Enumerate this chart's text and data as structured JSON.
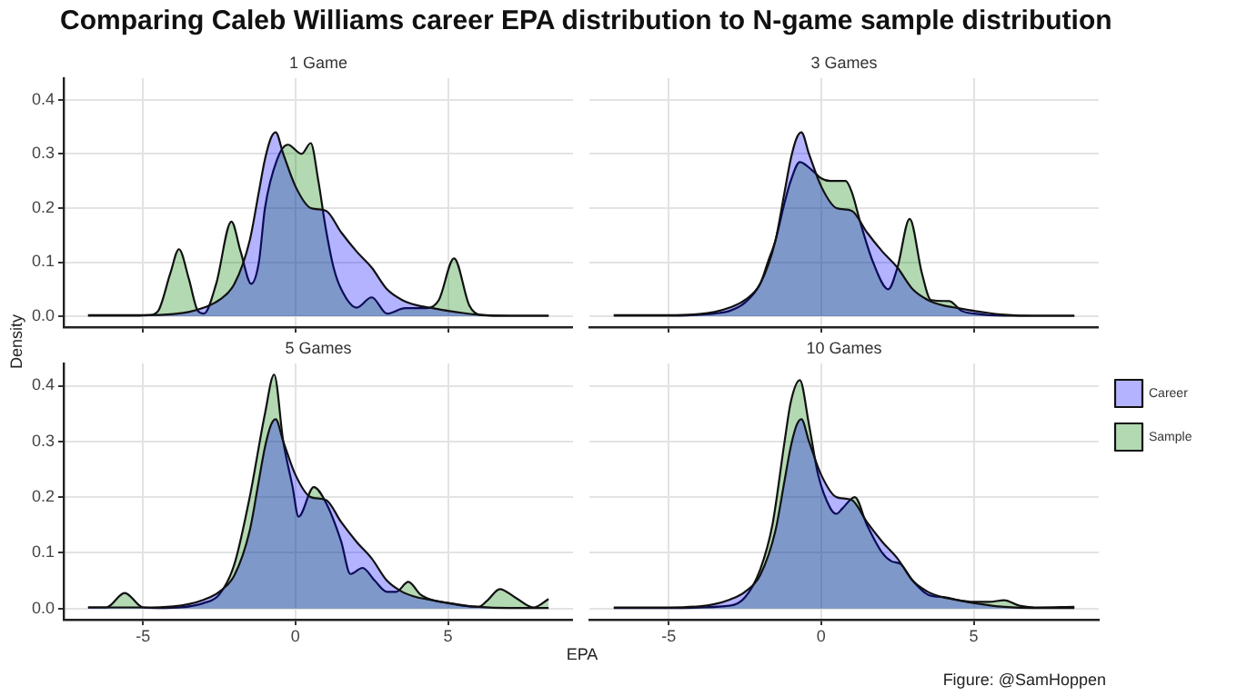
{
  "chart_data": [
    {
      "type": "area",
      "title": "Comparing Caleb Williams career EPA distribution to N-game sample distribution",
      "subtitle": "1 Game",
      "ylabel": "Density",
      "xlim": [
        -7.6,
        9.1
      ],
      "ylim": [
        -0.02,
        0.44
      ],
      "xticks": [
        -5,
        0,
        5
      ],
      "yticks": [
        {
          "value": 0,
          "label": "0.0"
        },
        {
          "value": 0.1,
          "label": "0.1"
        },
        {
          "value": 0.2,
          "label": "0.2"
        },
        {
          "value": 0.3,
          "label": "0.3"
        },
        {
          "value": 0.4,
          "label": "0.4"
        }
      ],
      "grid": true,
      "tick_labels": "y",
      "series": [
        {
          "color": "#b3b3ff",
          "x": [
            -6.8,
            -6,
            -5,
            -4,
            -3.5,
            -3,
            -2.5,
            -2,
            -1.5,
            -1.2,
            -1,
            -0.8,
            -0.65,
            -0.4,
            0,
            0.5,
            1,
            1.5,
            2,
            2.5,
            3,
            3.5,
            4,
            4.5,
            5,
            5.5,
            6,
            7,
            8.3
          ],
          "values": [
            0.002,
            0.002,
            0.002,
            0.004,
            0.008,
            0.016,
            0.03,
            0.06,
            0.14,
            0.23,
            0.29,
            0.33,
            0.34,
            0.3,
            0.24,
            0.2,
            0.195,
            0.155,
            0.12,
            0.09,
            0.05,
            0.03,
            0.02,
            0.015,
            0.01,
            0.006,
            0.003,
            0.001,
            0.001
          ]
        },
        {
          "color": "#b3d9b3",
          "x": [
            -6.8,
            -5.5,
            -4.8,
            -4.5,
            -4.1,
            -3.82,
            -3.5,
            -3.2,
            -3.0,
            -2.6,
            -2.1,
            -1.8,
            -1.45,
            -1.2,
            -1,
            -0.6,
            -0.25,
            0.2,
            0.5,
            0.75,
            1,
            1.25,
            1.5,
            2,
            2.5,
            3,
            3.6,
            4.3,
            4.7,
            5.2,
            5.7,
            6.1,
            7,
            8.3
          ],
          "values": [
            0.001,
            0.001,
            0.002,
            0.01,
            0.08,
            0.124,
            0.07,
            0.01,
            0.005,
            0.06,
            0.175,
            0.12,
            0.06,
            0.1,
            0.2,
            0.29,
            0.317,
            0.3,
            0.32,
            0.25,
            0.16,
            0.09,
            0.05,
            0.016,
            0.035,
            0.005,
            0.015,
            0.015,
            0.03,
            0.107,
            0.02,
            0.002,
            0.001,
            0.001
          ]
        }
      ]
    },
    {
      "type": "area",
      "subtitle": "3 Games",
      "xlim": [
        -7.6,
        9.1
      ],
      "ylim": [
        -0.02,
        0.44
      ],
      "xticks": [
        -5,
        0,
        5
      ],
      "yticks": [
        0,
        0.1,
        0.2,
        0.3,
        0.4
      ],
      "grid": true,
      "tick_labels": false,
      "series": [
        {
          "color": "#b3b3ff",
          "x": [
            -6.8,
            -6,
            -5,
            -4,
            -3.5,
            -3,
            -2.5,
            -2,
            -1.5,
            -1.2,
            -1,
            -0.8,
            -0.65,
            -0.4,
            0,
            0.5,
            1,
            1.5,
            2,
            2.5,
            3,
            3.5,
            4,
            4.5,
            5,
            5.5,
            6,
            7,
            8.3
          ],
          "values": [
            0.002,
            0.002,
            0.002,
            0.004,
            0.008,
            0.016,
            0.03,
            0.06,
            0.14,
            0.23,
            0.29,
            0.33,
            0.34,
            0.3,
            0.24,
            0.2,
            0.195,
            0.155,
            0.12,
            0.09,
            0.05,
            0.03,
            0.02,
            0.015,
            0.01,
            0.006,
            0.003,
            0.001,
            0.001
          ]
        },
        {
          "color": "#b3d9b3",
          "x": [
            -6.8,
            -5,
            -4,
            -3.5,
            -3,
            -2.5,
            -2,
            -1.75,
            -1.5,
            -1.2,
            -1,
            -0.7,
            -0.3,
            0,
            0.3,
            0.8,
            1,
            1.3,
            1.7,
            2.2,
            2.5,
            2.9,
            3.3,
            3.6,
            4.2,
            4.6,
            5,
            6,
            7,
            8.3
          ],
          "values": [
            0.001,
            0.001,
            0.003,
            0.005,
            0.01,
            0.025,
            0.06,
            0.1,
            0.14,
            0.21,
            0.25,
            0.285,
            0.27,
            0.255,
            0.25,
            0.25,
            0.23,
            0.17,
            0.1,
            0.05,
            0.09,
            0.18,
            0.08,
            0.03,
            0.028,
            0.01,
            0.005,
            0.001,
            0.001,
            0.001
          ]
        }
      ]
    },
    {
      "type": "area",
      "subtitle": "5 Games",
      "xlabel": "EPA",
      "xlim": [
        -7.6,
        9.1
      ],
      "ylim": [
        -0.02,
        0.44
      ],
      "xticks": [
        -5,
        0,
        5
      ],
      "yticks": [
        {
          "value": 0,
          "label": "0.0"
        },
        {
          "value": 0.1,
          "label": "0.1"
        },
        {
          "value": 0.2,
          "label": "0.2"
        },
        {
          "value": 0.3,
          "label": "0.3"
        },
        {
          "value": 0.4,
          "label": "0.4"
        }
      ],
      "grid": true,
      "series": [
        {
          "color": "#b3b3ff",
          "x": [
            -6.8,
            -6,
            -5,
            -4,
            -3.5,
            -3,
            -2.5,
            -2,
            -1.5,
            -1.2,
            -1,
            -0.8,
            -0.65,
            -0.4,
            0,
            0.5,
            1,
            1.5,
            2,
            2.5,
            3,
            3.5,
            4,
            4.5,
            5,
            5.5,
            6,
            7,
            8.3
          ],
          "values": [
            0.002,
            0.002,
            0.002,
            0.004,
            0.008,
            0.016,
            0.03,
            0.06,
            0.14,
            0.23,
            0.29,
            0.33,
            0.34,
            0.3,
            0.24,
            0.2,
            0.195,
            0.155,
            0.12,
            0.09,
            0.05,
            0.03,
            0.02,
            0.015,
            0.01,
            0.006,
            0.003,
            0.001,
            0.001
          ]
        },
        {
          "color": "#b3d9b3",
          "x": [
            -6.8,
            -6.2,
            -5.6,
            -5,
            -4.5,
            -3,
            -2.5,
            -2,
            -1.5,
            -1,
            -0.7,
            -0.4,
            -0.1,
            0.1,
            0.6,
            1,
            1.5,
            1.8,
            2.2,
            2.6,
            3,
            3.3,
            3.7,
            4.1,
            4.5,
            5,
            5.5,
            6,
            6.3,
            6.7,
            7.2,
            7.8,
            8.3
          ],
          "values": [
            0.002,
            0.002,
            0.028,
            0.002,
            0.001,
            0.01,
            0.025,
            0.08,
            0.2,
            0.35,
            0.42,
            0.3,
            0.22,
            0.165,
            0.218,
            0.19,
            0.12,
            0.062,
            0.073,
            0.05,
            0.03,
            0.03,
            0.048,
            0.025,
            0.015,
            0.01,
            0.005,
            0.003,
            0.015,
            0.035,
            0.02,
            0.002,
            0.017
          ]
        }
      ]
    },
    {
      "type": "area",
      "subtitle": "10 Games",
      "xlim": [
        -7.6,
        9.1
      ],
      "ylim": [
        -0.02,
        0.44
      ],
      "xticks": [
        -5,
        0,
        5
      ],
      "yticks": [
        0,
        0.1,
        0.2,
        0.3,
        0.4
      ],
      "grid": true,
      "tick_labels": "x",
      "legend": "right",
      "annotations": [
        "Figure: @SamHoppen"
      ],
      "series": [
        {
          "name": "Career",
          "color": "#b3b3ff",
          "x": [
            -6.8,
            -6,
            -5,
            -4,
            -3.5,
            -3,
            -2.5,
            -2,
            -1.5,
            -1.2,
            -1,
            -0.8,
            -0.65,
            -0.4,
            0,
            0.5,
            1,
            1.5,
            2,
            2.5,
            3,
            3.5,
            4,
            4.5,
            5,
            5.5,
            6,
            7,
            8.3
          ],
          "values": [
            0.002,
            0.002,
            0.002,
            0.004,
            0.008,
            0.016,
            0.03,
            0.06,
            0.14,
            0.23,
            0.29,
            0.33,
            0.34,
            0.3,
            0.24,
            0.2,
            0.195,
            0.155,
            0.12,
            0.09,
            0.05,
            0.03,
            0.02,
            0.015,
            0.01,
            0.006,
            0.003,
            0.001,
            0.001
          ]
        },
        {
          "name": "Sample",
          "color": "#b3d9b3",
          "x": [
            -6.8,
            -5,
            -3,
            -2.5,
            -2,
            -1.6,
            -1.2,
            -1,
            -0.7,
            -0.4,
            -0.1,
            0.3,
            0.5,
            0.7,
            1.1,
            1.5,
            2,
            2.3,
            2.6,
            3,
            3.5,
            4.1,
            4.5,
            5,
            5.5,
            6,
            6.5,
            7,
            8.3
          ],
          "values": [
            0.001,
            0.001,
            0.005,
            0.02,
            0.07,
            0.15,
            0.3,
            0.37,
            0.41,
            0.33,
            0.24,
            0.18,
            0.17,
            0.18,
            0.2,
            0.15,
            0.1,
            0.085,
            0.08,
            0.05,
            0.025,
            0.02,
            0.015,
            0.012,
            0.012,
            0.015,
            0.005,
            0.002,
            0.003
          ]
        }
      ]
    }
  ]
}
